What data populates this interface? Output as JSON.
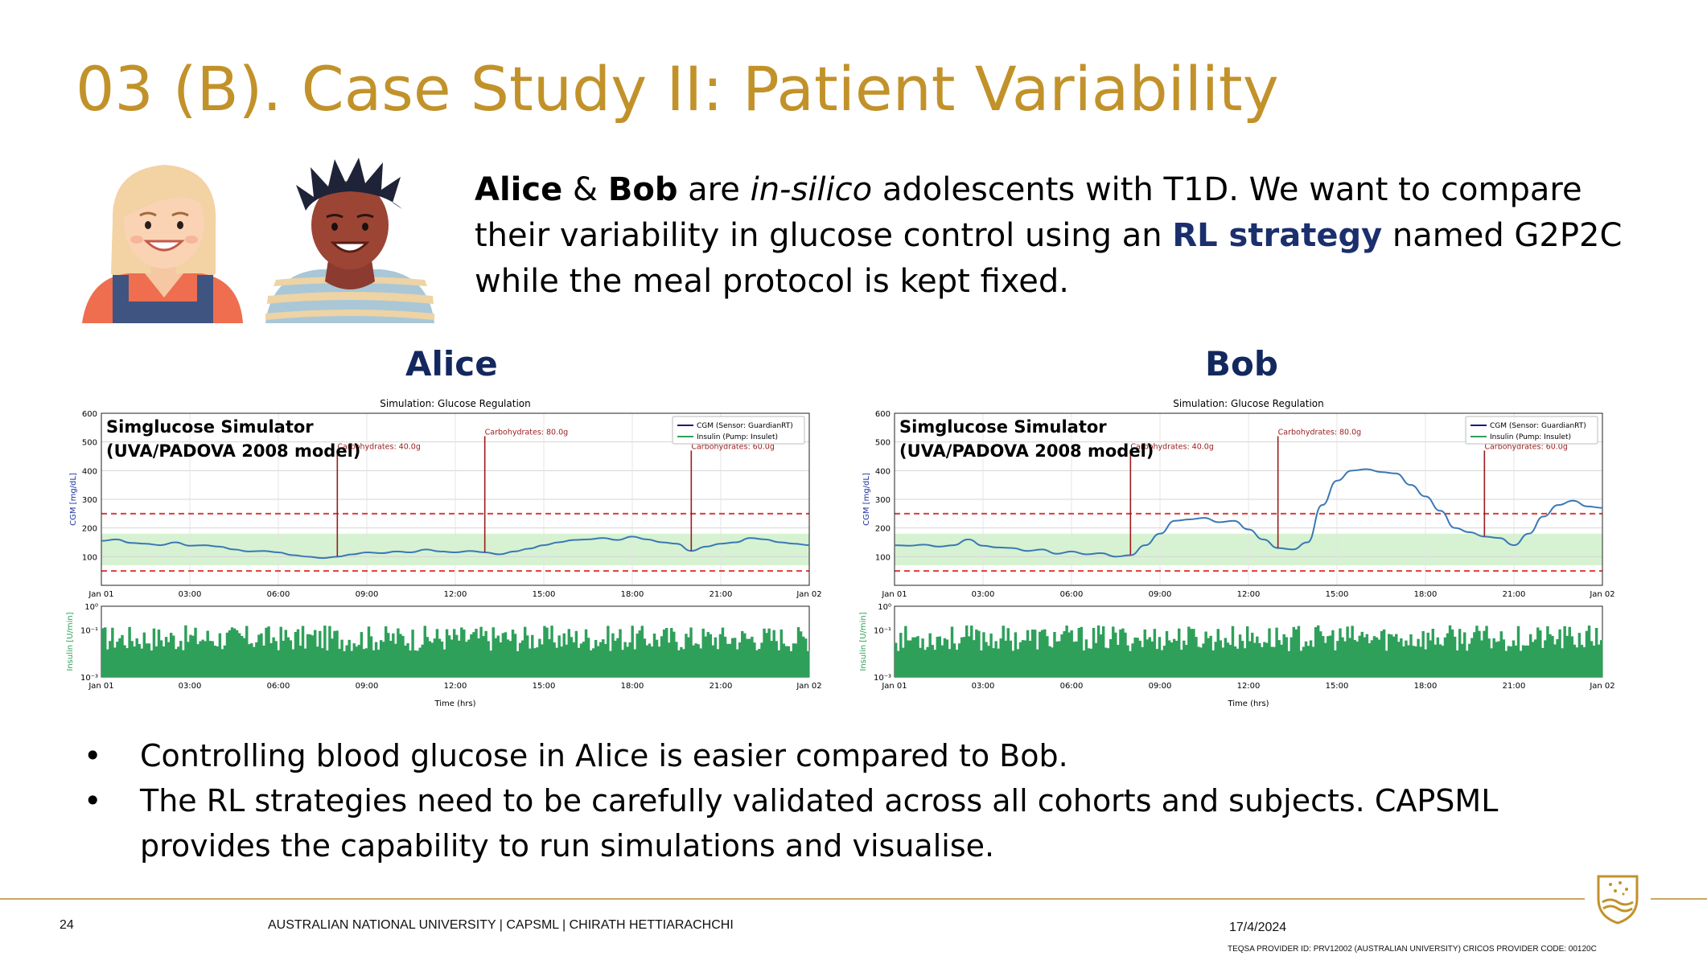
{
  "slide": {
    "title": "03 (B). Case Study II: Patient Variability",
    "intro": {
      "p1": "Alice",
      "p2": " & ",
      "p3": "Bob",
      "p4": " are ",
      "p5": "in-silico",
      "p6": " adolescents with T1D. We want to compare their variability in glucose control using an ",
      "p7": "RL strategy",
      "p8": " named G2P2C while the meal protocol is kept fixed."
    },
    "bullets": [
      "Controlling blood glucose in Alice is easier compared to Bob.",
      "The RL strategies need to be carefully validated across all cohorts and subjects. CAPSML provides the capability to run simulations and visualise."
    ],
    "bullet_symbol": "•",
    "footer": {
      "page": "24",
      "org": "AUSTRALIAN NATIONAL UNIVERSITY |   CAPSML   |  CHIRATH HETTIARACHCHI",
      "date": "17/4/2024",
      "teqsa": "TEQSA PROVIDER ID: PRV12002 (AUSTRALIAN UNIVERSITY) CRICOS PROVIDER CODE: 00120C"
    },
    "colors": {
      "title": "#c2922a",
      "accent": "#1b2f6e",
      "cgm": "#3a78b5",
      "insulin": "#2ea05a",
      "target_band": "#d6f2d2",
      "threshold": "#e03a3a",
      "carb": "#9b1c1c"
    }
  },
  "chart_data": [
    {
      "type": "line",
      "label": "Alice",
      "title": "Simulation: Glucose Regulation",
      "overlay": [
        "Simglucose Simulator",
        "(UVA/PADOVA 2008 model)"
      ],
      "ylabel": "CGM [mg/dL]",
      "ylim": [
        0,
        600
      ],
      "yticks": [
        "600",
        "500",
        "400",
        "300",
        "200",
        "100"
      ],
      "xticks": [
        "Jan 01",
        "03:00",
        "06:00",
        "09:00",
        "12:00",
        "15:00",
        "18:00",
        "21:00",
        "Jan 02"
      ],
      "thresholds": [
        250,
        50
      ],
      "target_range": [
        70,
        180
      ],
      "legend": [
        "CGM (Sensor: GuardianRT)",
        "Insulin (Pump: Insulet)"
      ],
      "meals": [
        {
          "time_h": 8.0,
          "label": "Carbohydrates: 40.0g"
        },
        {
          "time_h": 13.0,
          "label": "Carbohydrates: 80.0g"
        },
        {
          "time_h": 20.0,
          "label": "Carbohydrates: 60.0g"
        }
      ],
      "cgm": {
        "t": [
          0,
          0.5,
          1,
          1.5,
          2,
          2.5,
          3,
          3.5,
          4,
          4.5,
          5,
          5.5,
          6,
          6.5,
          7,
          7.5,
          8,
          8.5,
          9,
          9.5,
          10,
          10.5,
          11,
          11.5,
          12,
          12.5,
          13,
          13.5,
          14,
          14.5,
          15,
          15.5,
          16,
          16.5,
          17,
          17.5,
          18,
          18.5,
          19,
          19.5,
          20,
          20.5,
          21,
          21.5,
          22,
          22.5,
          23,
          23.5,
          24
        ],
        "values": [
          155,
          160,
          148,
          145,
          140,
          150,
          138,
          140,
          135,
          125,
          118,
          120,
          115,
          105,
          100,
          95,
          100,
          108,
          115,
          112,
          118,
          115,
          125,
          118,
          115,
          120,
          115,
          108,
          118,
          128,
          140,
          150,
          158,
          160,
          165,
          158,
          170,
          160,
          150,
          145,
          120,
          135,
          145,
          150,
          165,
          160,
          150,
          145,
          140
        ]
      },
      "insulin": {
        "ylabel": "Insulin [U/min]",
        "ylim_log": [
          0.001,
          1
        ],
        "yticks": [
          "10⁰",
          "10⁻¹",
          "10⁻³"
        ],
        "xticks": [
          "Jan 01",
          "03:00",
          "06:00",
          "09:00",
          "12:00",
          "15:00",
          "18:00",
          "21:00",
          "Jan 02"
        ],
        "xlabel": "Time (hrs)",
        "typical_rate": 0.03
      }
    },
    {
      "type": "line",
      "label": "Bob",
      "title": "Simulation: Glucose Regulation",
      "overlay": [
        "Simglucose Simulator",
        "(UVA/PADOVA 2008 model)"
      ],
      "ylabel": "CGM [mg/dL]",
      "ylim": [
        0,
        600
      ],
      "yticks": [
        "600",
        "500",
        "400",
        "300",
        "200",
        "100"
      ],
      "xticks": [
        "Jan 01",
        "03:00",
        "06:00",
        "09:00",
        "12:00",
        "15:00",
        "18:00",
        "21:00",
        "Jan 02"
      ],
      "thresholds": [
        250,
        50
      ],
      "target_range": [
        70,
        180
      ],
      "legend": [
        "CGM (Sensor: GuardianRT)",
        "Insulin (Pump: Insulet)"
      ],
      "meals": [
        {
          "time_h": 8.0,
          "label": "Carbohydrates: 40.0g"
        },
        {
          "time_h": 13.0,
          "label": "Carbohydrates: 80.0g"
        },
        {
          "time_h": 20.0,
          "label": "Carbohydrates: 60.0g"
        }
      ],
      "cgm": {
        "t": [
          0,
          0.5,
          1,
          1.5,
          2,
          2.5,
          3,
          3.5,
          4,
          4.5,
          5,
          5.5,
          6,
          6.5,
          7,
          7.5,
          8,
          8.5,
          9,
          9.5,
          10,
          10.5,
          11,
          11.5,
          12,
          12.5,
          13,
          13.5,
          14,
          14.5,
          15,
          15.5,
          16,
          16.5,
          17,
          17.5,
          18,
          18.5,
          19,
          19.5,
          20,
          20.5,
          21,
          21.5,
          22,
          22.5,
          23,
          23.5,
          24
        ],
        "values": [
          140,
          138,
          142,
          135,
          140,
          160,
          138,
          132,
          130,
          120,
          125,
          110,
          118,
          108,
          112,
          100,
          105,
          140,
          180,
          225,
          230,
          235,
          220,
          225,
          195,
          160,
          130,
          125,
          150,
          280,
          365,
          400,
          405,
          395,
          390,
          350,
          310,
          260,
          200,
          185,
          170,
          165,
          140,
          180,
          240,
          280,
          295,
          275,
          270
        ]
      },
      "insulin": {
        "ylabel": "Insulin [U/min]",
        "ylim_log": [
          0.001,
          1
        ],
        "yticks": [
          "10⁰",
          "10⁻¹",
          "10⁻³"
        ],
        "xticks": [
          "Jan 01",
          "03:00",
          "06:00",
          "09:00",
          "12:00",
          "15:00",
          "18:00",
          "21:00",
          "Jan 02"
        ],
        "xlabel": "Time (hrs)",
        "typical_rate": 0.03
      }
    }
  ]
}
